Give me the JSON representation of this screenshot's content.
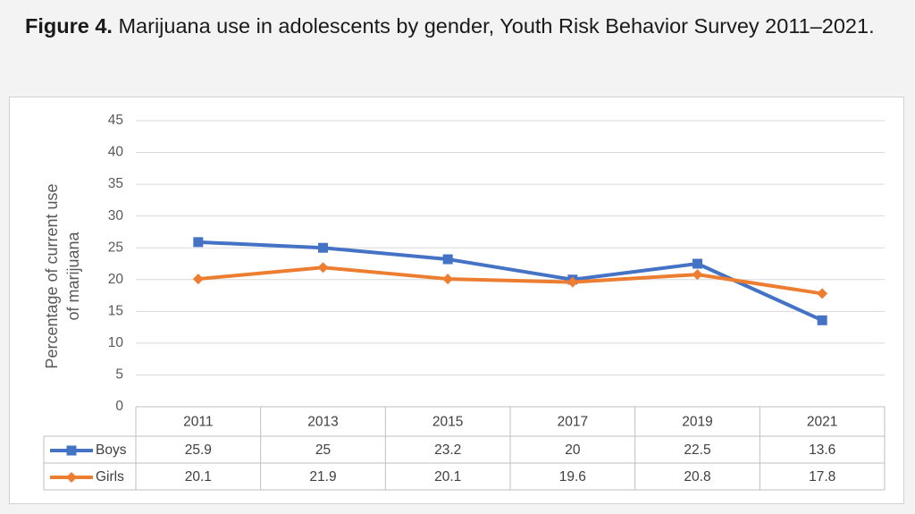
{
  "caption": {
    "label": "Figure 4.",
    "text": " Marijuana use in adolescents by gender, Youth Risk Behavior Survey 2011–2021."
  },
  "chart_data": {
    "type": "line",
    "title": "",
    "xlabel": "",
    "ylabel_lines": [
      "Percentage of current use",
      "of marijuana"
    ],
    "categories": [
      "2011",
      "2013",
      "2015",
      "2017",
      "2019",
      "2021"
    ],
    "ylim": [
      0,
      45
    ],
    "yticks": [
      0,
      5,
      10,
      15,
      20,
      25,
      30,
      35,
      40,
      45
    ],
    "grid": true,
    "legend": "data-table",
    "series": [
      {
        "name": "Boys",
        "color": "#4472c4",
        "marker": "square",
        "values": [
          25.9,
          25,
          23.2,
          20,
          22.5,
          13.6
        ],
        "labels": [
          "25.9",
          "25",
          "23.2",
          "20",
          "22.5",
          "13.6"
        ]
      },
      {
        "name": "Girls",
        "color": "#ed7d31",
        "marker": "diamond",
        "values": [
          20.1,
          21.9,
          20.1,
          19.6,
          20.8,
          17.8
        ],
        "labels": [
          "20.1",
          "21.9",
          "20.1",
          "19.6",
          "20.8",
          "17.8"
        ]
      }
    ]
  }
}
